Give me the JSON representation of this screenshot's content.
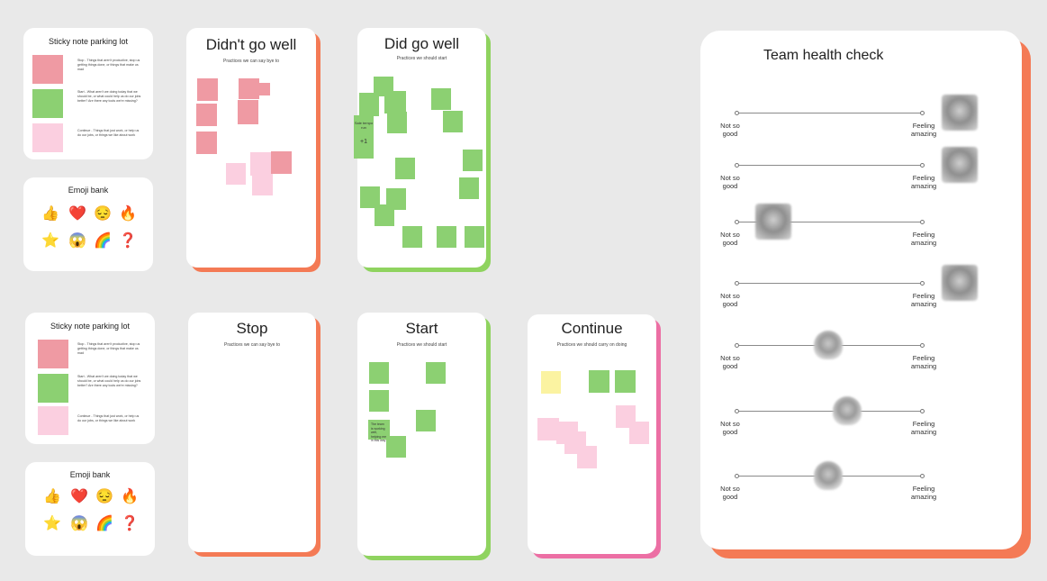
{
  "parking_lot": {
    "title": "Sticky note parking lot",
    "items": [
      {
        "color": "red",
        "text": "Stop - Things that aren't productive, stop us getting things done, or things that make us mad"
      },
      {
        "color": "green",
        "text": "Start - What aren't we doing today that we should be, or what could help us do our jobs better? Are there any tools we're missing?"
      },
      {
        "color": "pink",
        "text": "Continue - Things that just work, or help us do our jobs, or things we like about work"
      }
    ]
  },
  "emoji_bank": {
    "title": "Emoji bank",
    "emojis": [
      "👍",
      "❤️",
      "😔",
      "🔥",
      "⭐",
      "😱",
      "🌈",
      "❓"
    ]
  },
  "boards": {
    "didnt": {
      "title": "Didn't go well",
      "subtitle": "Practices we can say bye to"
    },
    "did": {
      "title": "Did go well",
      "subtitle": "Practices we should start",
      "note_text": "Sale tempo run",
      "vote": "+1"
    },
    "stop": {
      "title": "Stop",
      "subtitle": "Practices we can say bye to"
    },
    "start": {
      "title": "Start",
      "subtitle": "Practices we should start",
      "note_text": "The team is working well, helping me in this way"
    },
    "continue": {
      "title": "Continue",
      "subtitle": "Practices we should carry on doing"
    }
  },
  "health_check": {
    "title": "Team health check",
    "low_label": "Not so good",
    "high_label": "Feeling amazing",
    "rows": [
      {
        "level": 1.0
      },
      {
        "level": 1.0
      },
      {
        "level": 0.1
      },
      {
        "level": 1.0
      },
      {
        "level": 0.4
      },
      {
        "level": 0.5
      },
      {
        "level": 0.4
      }
    ]
  },
  "colors": {
    "red": "#ef9aa3",
    "green": "#8cd072",
    "pink": "#fbcfe0",
    "yellow": "#fbf3a1",
    "accent_orange": "#f47a55"
  }
}
